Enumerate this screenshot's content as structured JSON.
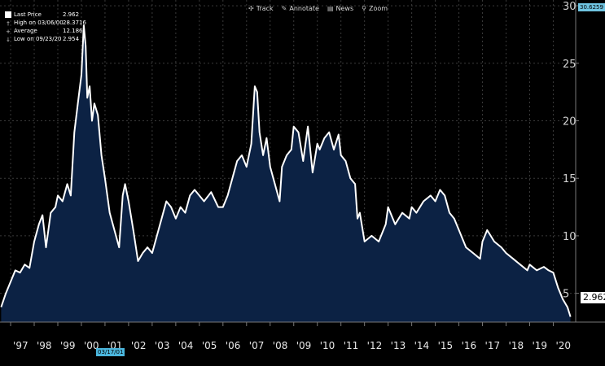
{
  "toolbar": {
    "items": [
      {
        "icon": "cursor-icon",
        "label": "Track"
      },
      {
        "icon": "pencil-icon",
        "label": "Annotate"
      },
      {
        "icon": "news-icon",
        "label": "News"
      },
      {
        "icon": "magnifier-icon",
        "label": "Zoom"
      }
    ]
  },
  "legend": {
    "last_price_label": "Last Price",
    "last_price_value": "2.962",
    "high_label": "High on 03/06/00",
    "high_value": "28.3716",
    "average_label": "Average",
    "average_value": "12.186",
    "low_label": "Low on 09/23/20",
    "low_value": "2.954"
  },
  "max_label": "30.6259",
  "last_label": "2.962",
  "cursor_date_label": "03/17/01",
  "colors": {
    "background": "#000000",
    "line": "#ffffff",
    "area": "#0c2244",
    "grid": "#3a3a3a",
    "tag": "#6fc3e0"
  },
  "chart_data": {
    "type": "area",
    "title": "",
    "xlabel": "",
    "ylabel": "",
    "ylim": [
      2.5,
      30.5
    ],
    "xlim": [
      1996.55,
      2020.95
    ],
    "grid": true,
    "y_ticks": [
      5,
      10,
      15,
      20,
      25,
      30
    ],
    "x_tick_labels": [
      "'97",
      "'98",
      "'99",
      "'00",
      "'01",
      "'02",
      "'03",
      "'04",
      "'05",
      "'06",
      "'07",
      "'08",
      "'09",
      "'10",
      "'11",
      "'12",
      "'13",
      "'14",
      "'15",
      "'16",
      "'17",
      "'18",
      "'19",
      "'20"
    ],
    "x_tick_years": [
      1997,
      1998,
      1999,
      2000,
      2001,
      2002,
      2003,
      2004,
      2005,
      2006,
      2007,
      2008,
      2009,
      2010,
      2011,
      2012,
      2013,
      2014,
      2015,
      2016,
      2017,
      2018,
      2019,
      2020
    ],
    "series": [
      {
        "name": "Last Price",
        "x": [
          1996.6,
          1996.8,
          1997.0,
          1997.2,
          1997.4,
          1997.6,
          1997.8,
          1998.0,
          1998.2,
          1998.35,
          1998.5,
          1998.7,
          1998.9,
          1999.0,
          1999.2,
          1999.4,
          1999.55,
          1999.7,
          1999.85,
          2000.0,
          2000.1,
          2000.18,
          2000.25,
          2000.35,
          2000.45,
          2000.55,
          2000.7,
          2000.85,
          2001.0,
          2001.2,
          2001.4,
          2001.6,
          2001.75,
          2001.85,
          2002.0,
          2002.2,
          2002.4,
          2002.6,
          2002.8,
          2003.0,
          2003.2,
          2003.4,
          2003.6,
          2003.8,
          2004.0,
          2004.2,
          2004.4,
          2004.6,
          2004.8,
          2005.0,
          2005.2,
          2005.5,
          2005.8,
          2006.0,
          2006.2,
          2006.4,
          2006.6,
          2006.8,
          2007.0,
          2007.2,
          2007.35,
          2007.45,
          2007.55,
          2007.7,
          2007.85,
          2008.0,
          2008.2,
          2008.4,
          2008.5,
          2008.7,
          2008.9,
          2009.0,
          2009.2,
          2009.4,
          2009.5,
          2009.6,
          2009.8,
          2010.0,
          2010.1,
          2010.3,
          2010.5,
          2010.7,
          2010.9,
          2011.0,
          2011.2,
          2011.4,
          2011.6,
          2011.7,
          2011.8,
          2012.0,
          2012.3,
          2012.6,
          2012.9,
          2013.0,
          2013.3,
          2013.6,
          2013.9,
          2014.0,
          2014.2,
          2014.5,
          2014.8,
          2015.0,
          2015.2,
          2015.4,
          2015.6,
          2015.8,
          2016.0,
          2016.3,
          2016.6,
          2016.9,
          2017.0,
          2017.2,
          2017.5,
          2017.8,
          2018.0,
          2018.3,
          2018.6,
          2018.9,
          2019.0,
          2019.3,
          2019.6,
          2019.8,
          2020.0,
          2020.2,
          2020.4,
          2020.6,
          2020.73
        ],
        "values": [
          3.8,
          5.0,
          6.0,
          7.0,
          6.8,
          7.5,
          7.2,
          9.5,
          11.0,
          11.8,
          9.0,
          12.0,
          12.5,
          13.5,
          13.0,
          14.5,
          13.5,
          19.0,
          21.5,
          24.0,
          28.3,
          26.5,
          22.0,
          23.0,
          20.0,
          21.5,
          20.5,
          17.0,
          15.0,
          12.0,
          10.5,
          9.0,
          13.5,
          14.5,
          13.0,
          10.5,
          7.8,
          8.5,
          9.0,
          8.5,
          10.0,
          11.5,
          13.0,
          12.5,
          11.5,
          12.5,
          12.0,
          13.5,
          14.0,
          13.5,
          13.0,
          13.8,
          12.5,
          12.5,
          13.5,
          15.0,
          16.5,
          17.0,
          16.0,
          18.0,
          23.0,
          22.5,
          19.0,
          17.0,
          18.5,
          16.0,
          14.5,
          13.0,
          16.0,
          17.0,
          17.5,
          19.5,
          19.0,
          16.5,
          18.0,
          19.5,
          15.5,
          18.0,
          17.5,
          18.5,
          19.0,
          17.5,
          18.8,
          17.0,
          16.5,
          15.0,
          14.5,
          11.5,
          12.0,
          9.5,
          10.0,
          9.5,
          11.0,
          12.5,
          11.0,
          12.0,
          11.5,
          12.5,
          12.0,
          13.0,
          13.5,
          13.0,
          14.0,
          13.5,
          12.0,
          11.5,
          10.5,
          9.0,
          8.5,
          8.0,
          9.5,
          10.5,
          9.5,
          9.0,
          8.5,
          8.0,
          7.5,
          7.0,
          7.5,
          7.0,
          7.3,
          7.0,
          6.8,
          5.5,
          4.5,
          3.8,
          2.96
        ]
      }
    ]
  }
}
